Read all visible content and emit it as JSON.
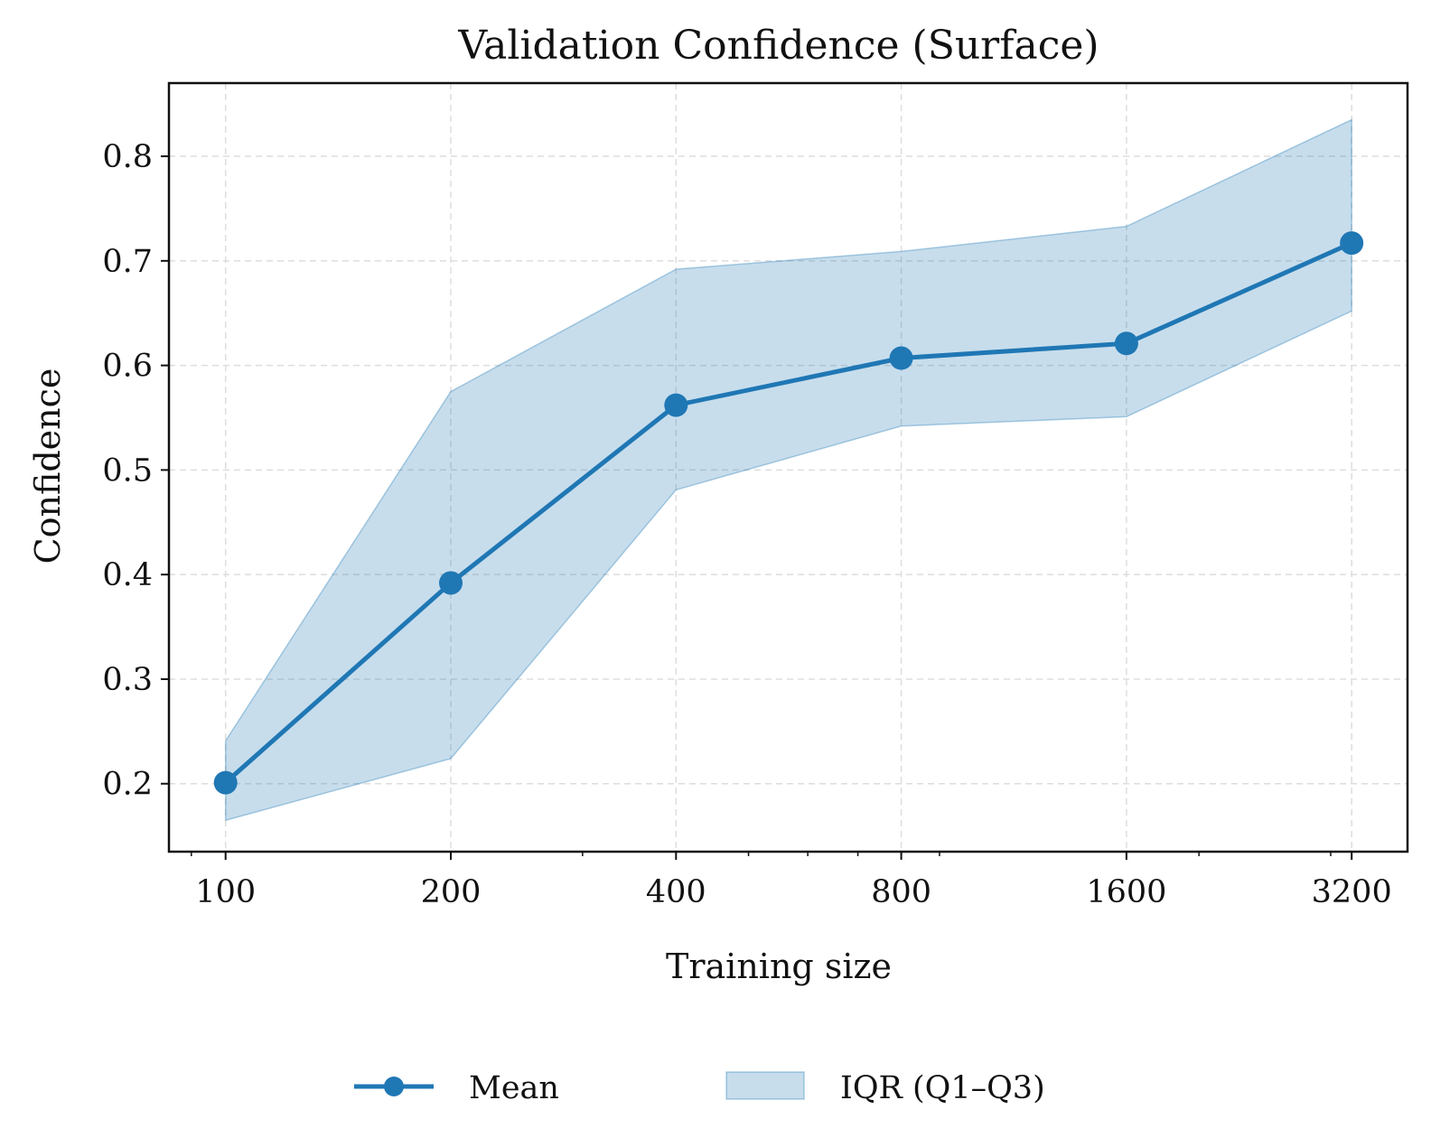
{
  "chart_data": {
    "type": "line",
    "title": "Validation Confidence (Surface)",
    "xlabel": "Training size",
    "ylabel": "Confidence",
    "x_scale": "log2",
    "x": [
      100,
      200,
      400,
      800,
      1600,
      3200
    ],
    "x_tick_labels": [
      "100",
      "200",
      "400",
      "800",
      "1600",
      "3200"
    ],
    "y_ticks": [
      0.2,
      0.3,
      0.4,
      0.5,
      0.6,
      0.7,
      0.8
    ],
    "y_tick_labels": [
      "0.2",
      "0.3",
      "0.4",
      "0.5",
      "0.6",
      "0.7",
      "0.8"
    ],
    "xlim": [
      84,
      3800
    ],
    "ylim": [
      0.135,
      0.87
    ],
    "grid": true,
    "legend_position": "bottom-center",
    "series": [
      {
        "name": "Mean",
        "kind": "line-with-markers",
        "values": [
          0.201,
          0.392,
          0.562,
          0.607,
          0.621,
          0.717
        ],
        "color": "#1f77b4"
      }
    ],
    "band": {
      "name": "IQR (Q1–Q3)",
      "lower": [
        0.165,
        0.224,
        0.481,
        0.542,
        0.551,
        0.652
      ],
      "upper": [
        0.241,
        0.575,
        0.692,
        0.709,
        0.733,
        0.835
      ],
      "color": "#1f77b4",
      "opacity": 0.25
    }
  }
}
